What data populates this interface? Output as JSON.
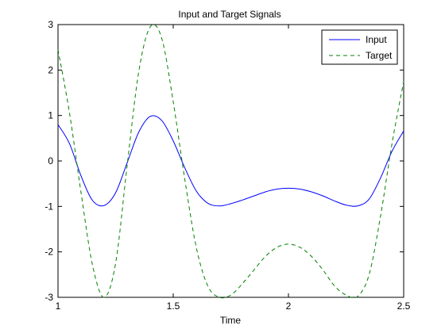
{
  "chart_data": {
    "type": "line",
    "title": "Input and Target Signals",
    "xlabel": "Time",
    "ylabel": "",
    "xlim": [
      1,
      2.5
    ],
    "ylim": [
      -3,
      3
    ],
    "xticks": [
      1,
      1.5,
      2,
      2.5
    ],
    "xtick_labels": [
      "1",
      "1.5",
      "2",
      "2.5"
    ],
    "yticks": [
      -3,
      -2,
      -1,
      0,
      1,
      2,
      3
    ],
    "ytick_labels": [
      "-3",
      "-2",
      "-1",
      "0",
      "1",
      "2",
      "3"
    ],
    "grid": false,
    "legend_position": "top-right",
    "x": [
      1.0,
      1.05,
      1.1,
      1.15,
      1.2,
      1.25,
      1.3,
      1.35,
      1.4,
      1.45,
      1.5,
      1.55,
      1.6,
      1.65,
      1.7,
      1.75,
      1.8,
      1.85,
      1.9,
      1.95,
      2.0,
      2.05,
      2.1,
      2.15,
      2.2,
      2.25,
      2.3,
      2.35,
      2.4,
      2.45,
      2.5
    ],
    "series": [
      {
        "name": "Input",
        "color": "#0000ff",
        "style": "solid",
        "values": [
          0.8,
          0.38,
          -0.33,
          -0.87,
          -0.98,
          -0.7,
          -0.04,
          0.63,
          0.98,
          0.89,
          0.44,
          -0.15,
          -0.66,
          -0.93,
          -0.99,
          -0.94,
          -0.86,
          -0.77,
          -0.68,
          -0.62,
          -0.6,
          -0.62,
          -0.68,
          -0.77,
          -0.88,
          -0.97,
          -0.99,
          -0.84,
          -0.37,
          0.22,
          0.66
        ]
      },
      {
        "name": "Target",
        "color": "#008000",
        "style": "dashed",
        "values": [
          2.45,
          1.05,
          -0.7,
          -2.3,
          -3.0,
          -2.25,
          -0.1,
          1.95,
          2.95,
          2.7,
          1.3,
          -0.4,
          -1.9,
          -2.75,
          -3.0,
          -2.95,
          -2.7,
          -2.4,
          -2.1,
          -1.9,
          -1.83,
          -1.9,
          -2.1,
          -2.4,
          -2.75,
          -2.95,
          -2.98,
          -2.5,
          -1.2,
          0.4,
          1.75
        ]
      }
    ]
  }
}
